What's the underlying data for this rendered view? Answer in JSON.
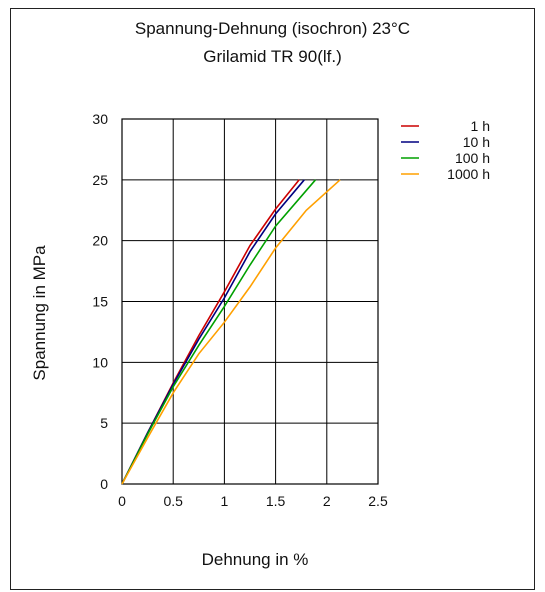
{
  "colors": {
    "1h": "#cc0000",
    "10h": "#000080",
    "100h": "#00a000",
    "1000h": "#ffa000"
  },
  "chart_data": {
    "type": "line",
    "title": "Spannung-Dehnung (isochron) 23°C",
    "subtitle": "Grilamid TR 90(lf.)",
    "xlabel": "Dehnung in %",
    "ylabel": "Spannung in MPa",
    "xlim": [
      0,
      2.5
    ],
    "ylim": [
      0,
      30
    ],
    "xticks": [
      "0",
      "0.5",
      "1",
      "1.5",
      "2",
      "2.5"
    ],
    "yticks": [
      "0",
      "5",
      "10",
      "15",
      "20",
      "25",
      "30"
    ],
    "grid": true,
    "legend": "top-right",
    "series": [
      {
        "name": "1h",
        "color": "#cc0000",
        "points": [
          [
            0,
            0
          ],
          [
            0.25,
            4.2
          ],
          [
            0.5,
            8.3
          ],
          [
            0.75,
            12.2
          ],
          [
            1.0,
            15.8
          ],
          [
            1.25,
            19.6
          ],
          [
            1.5,
            22.6
          ],
          [
            1.73,
            25
          ]
        ]
      },
      {
        "name": "10h",
        "color": "#000080",
        "points": [
          [
            0,
            0
          ],
          [
            0.25,
            4.2
          ],
          [
            0.5,
            8.2
          ],
          [
            0.75,
            11.9
          ],
          [
            1.0,
            15.3
          ],
          [
            1.25,
            19.1
          ],
          [
            1.5,
            22.2
          ],
          [
            1.78,
            25
          ]
        ]
      },
      {
        "name": "100h",
        "color": "#00a000",
        "points": [
          [
            0,
            0
          ],
          [
            0.25,
            4.1
          ],
          [
            0.5,
            8.0
          ],
          [
            0.75,
            11.4
          ],
          [
            1.0,
            14.6
          ],
          [
            1.25,
            18.0
          ],
          [
            1.5,
            21.2
          ],
          [
            1.89,
            25
          ]
        ]
      },
      {
        "name": "1000h",
        "color": "#ffa000",
        "points": [
          [
            0,
            0
          ],
          [
            0.25,
            3.8
          ],
          [
            0.5,
            7.5
          ],
          [
            0.75,
            10.7
          ],
          [
            1.0,
            13.3
          ],
          [
            1.25,
            16.2
          ],
          [
            1.5,
            19.4
          ],
          [
            1.8,
            22.5
          ],
          [
            2.13,
            25
          ]
        ]
      }
    ]
  }
}
